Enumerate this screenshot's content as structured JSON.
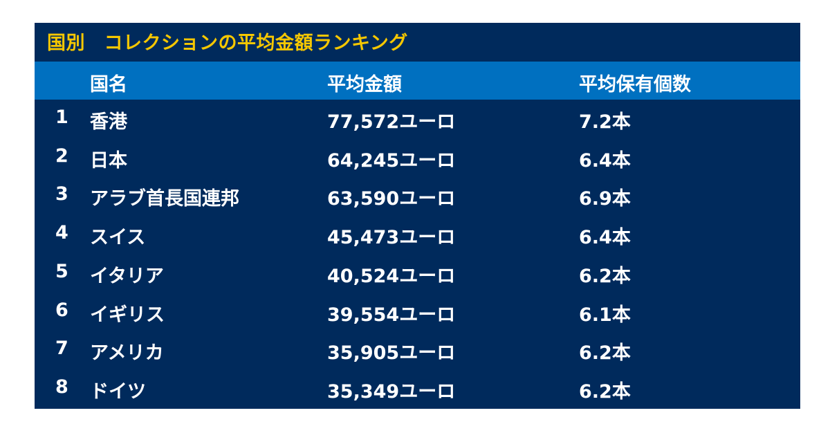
{
  "colors": {
    "panel_background": "#002a5c",
    "header_background": "#0070c0",
    "title_text": "#f6c700",
    "body_text": "#ffffff"
  },
  "chart_data": {
    "type": "table",
    "title": "国別　コレクションの平均金額ランキング",
    "columns": [
      "",
      "国名",
      "平均金額",
      "平均保有個数"
    ],
    "rows": [
      {
        "rank": "1",
        "country": "香港",
        "amount": "77,572ユーロ",
        "count": "7.2本"
      },
      {
        "rank": "2",
        "country": "日本",
        "amount": "64,245ユーロ",
        "count": "6.4本"
      },
      {
        "rank": "3",
        "country": "アラブ首長国連邦",
        "amount": "63,590ユーロ",
        "count": "6.9本"
      },
      {
        "rank": "4",
        "country": "スイス",
        "amount": "45,473ユーロ",
        "count": "6.4本"
      },
      {
        "rank": "5",
        "country": "イタリア",
        "amount": "40,524ユーロ",
        "count": "6.2本"
      },
      {
        "rank": "6",
        "country": "イギリス",
        "amount": "39,554ユーロ",
        "count": "6.1本"
      },
      {
        "rank": "7",
        "country": "アメリカ",
        "amount": "35,905ユーロ",
        "count": "6.2本"
      },
      {
        "rank": "8",
        "country": "ドイツ",
        "amount": "35,349ユーロ",
        "count": "6.2本"
      }
    ]
  }
}
